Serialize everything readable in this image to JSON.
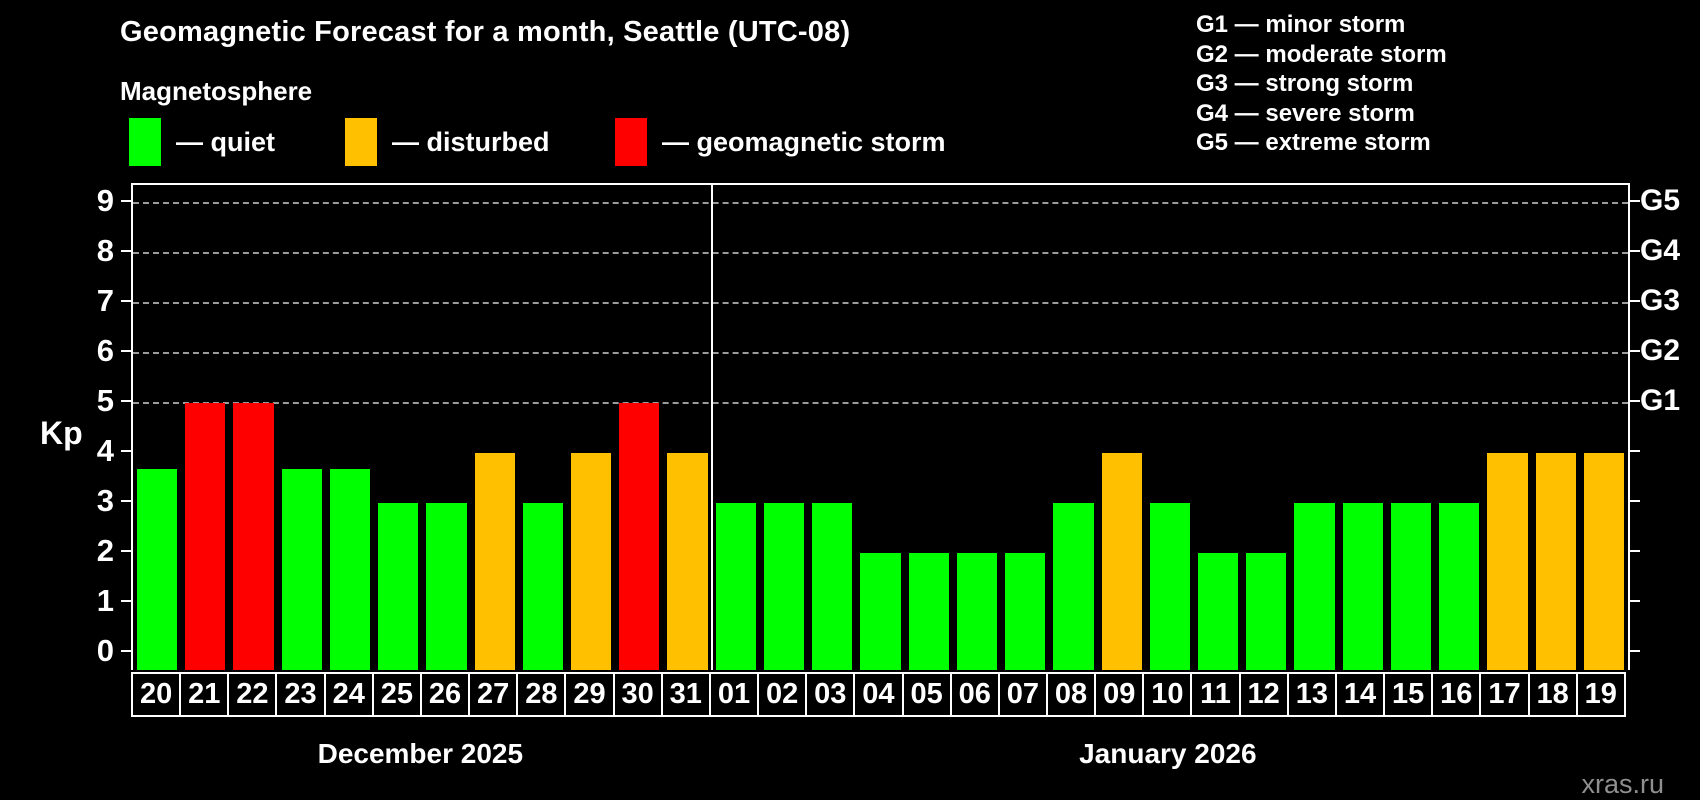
{
  "header": {
    "title": "Geomagnetic Forecast for a month, Seattle (UTC-08)",
    "subtitle": "Magnetosphere",
    "legend": [
      {
        "state": "quiet",
        "label": "— quiet"
      },
      {
        "state": "disturbed",
        "label": "— disturbed"
      },
      {
        "state": "storm",
        "label": "— geomagnetic storm"
      }
    ],
    "g_scale_legend": [
      "G1 — minor storm",
      "G2 — moderate storm",
      "G3 — strong storm",
      "G4 — severe storm",
      "G5 — extreme storm"
    ]
  },
  "chart_data": {
    "type": "bar",
    "ylabel": "Kp",
    "ylim": [
      0,
      9.7
    ],
    "yticks": [
      0,
      1,
      2,
      3,
      4,
      5,
      6,
      7,
      8,
      9
    ],
    "gridlines_at": [
      5,
      6,
      7,
      8,
      9
    ],
    "grid": "dashed horizontal at storm levels only",
    "right_axis_labels": [
      {
        "label": "G1",
        "kp": 5
      },
      {
        "label": "G2",
        "kp": 6
      },
      {
        "label": "G3",
        "kp": 7
      },
      {
        "label": "G4",
        "kp": 8
      },
      {
        "label": "G5",
        "kp": 9
      }
    ],
    "state_colors": {
      "quiet": "#00ff00",
      "disturbed": "#ffc000",
      "storm": "#ff0000"
    },
    "groups": [
      {
        "label": "December 2025",
        "days": 12
      },
      {
        "label": "January 2026",
        "days": 19
      }
    ],
    "bars": [
      {
        "day": "20",
        "kp": 3.67,
        "state": "quiet"
      },
      {
        "day": "21",
        "kp": 5,
        "state": "storm"
      },
      {
        "day": "22",
        "kp": 5,
        "state": "storm"
      },
      {
        "day": "23",
        "kp": 3.67,
        "state": "quiet"
      },
      {
        "day": "24",
        "kp": 3.67,
        "state": "quiet"
      },
      {
        "day": "25",
        "kp": 3,
        "state": "quiet"
      },
      {
        "day": "26",
        "kp": 3,
        "state": "quiet"
      },
      {
        "day": "27",
        "kp": 4,
        "state": "disturbed"
      },
      {
        "day": "28",
        "kp": 3,
        "state": "quiet"
      },
      {
        "day": "29",
        "kp": 4,
        "state": "disturbed"
      },
      {
        "day": "30",
        "kp": 5,
        "state": "storm"
      },
      {
        "day": "31",
        "kp": 4,
        "state": "disturbed"
      },
      {
        "day": "01",
        "kp": 3,
        "state": "quiet"
      },
      {
        "day": "02",
        "kp": 3,
        "state": "quiet"
      },
      {
        "day": "03",
        "kp": 3,
        "state": "quiet"
      },
      {
        "day": "04",
        "kp": 2,
        "state": "quiet"
      },
      {
        "day": "05",
        "kp": 2,
        "state": "quiet"
      },
      {
        "day": "06",
        "kp": 2,
        "state": "quiet"
      },
      {
        "day": "07",
        "kp": 2,
        "state": "quiet"
      },
      {
        "day": "08",
        "kp": 3,
        "state": "quiet"
      },
      {
        "day": "09",
        "kp": 4,
        "state": "disturbed"
      },
      {
        "day": "10",
        "kp": 3,
        "state": "quiet"
      },
      {
        "day": "11",
        "kp": 2,
        "state": "quiet"
      },
      {
        "day": "12",
        "kp": 2,
        "state": "quiet"
      },
      {
        "day": "13",
        "kp": 3,
        "state": "quiet"
      },
      {
        "day": "14",
        "kp": 3,
        "state": "quiet"
      },
      {
        "day": "15",
        "kp": 3,
        "state": "quiet"
      },
      {
        "day": "16",
        "kp": 3,
        "state": "quiet"
      },
      {
        "day": "17",
        "kp": 4,
        "state": "disturbed"
      },
      {
        "day": "18",
        "kp": 4,
        "state": "disturbed"
      },
      {
        "day": "19",
        "kp": 4,
        "state": "disturbed"
      }
    ]
  },
  "watermark": "xras.ru"
}
